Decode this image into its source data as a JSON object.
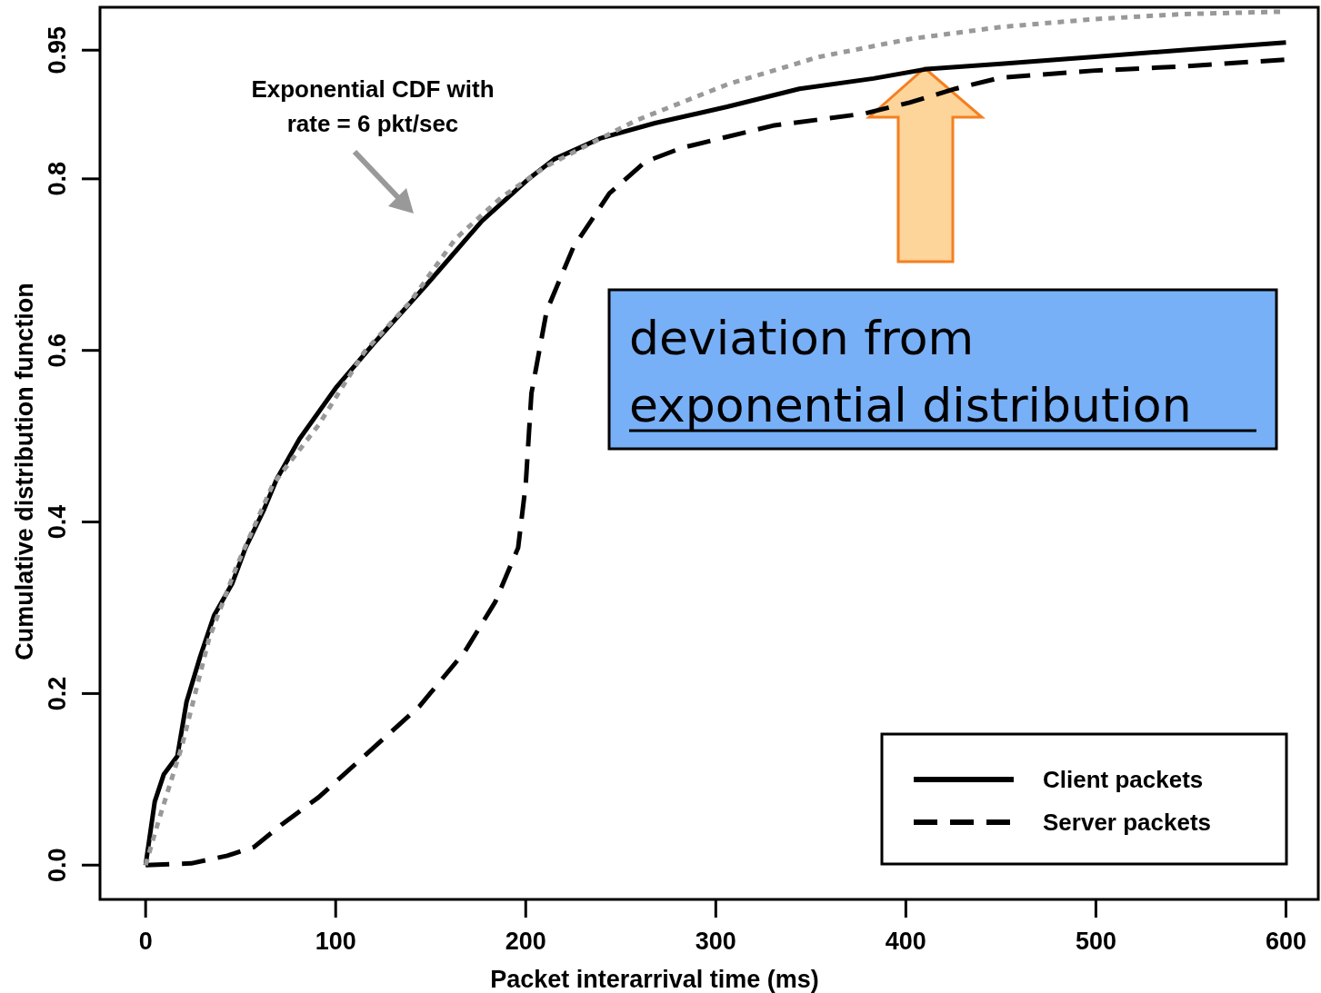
{
  "chart_data": {
    "type": "line",
    "xlabel": "Packet interarrival time (ms)",
    "ylabel": "Cumulative distribution function",
    "xlim": [
      -24,
      617
    ],
    "ylim": [
      -0.04,
      1.0
    ],
    "xticks": [
      0,
      100,
      200,
      300,
      400,
      500,
      600
    ],
    "yticks": [
      {
        "value": 0,
        "label": "0.0"
      },
      {
        "value": 0.2,
        "label": "0.2"
      },
      {
        "value": 0.4,
        "label": "0.4"
      },
      {
        "value": 0.6,
        "label": "0.6"
      },
      {
        "value": 0.8,
        "label": "0.8"
      },
      {
        "value": 0.95,
        "label": "0.95"
      }
    ],
    "grid": false,
    "legend": "bottom right",
    "series": [
      {
        "name": "Client packets",
        "color": "#000000",
        "line_style": "solid",
        "x": [
          0,
          4.8,
          9.6,
          16.7,
          21.5,
          28.7,
          36,
          45.5,
          52.6,
          62,
          69,
          81,
          100,
          120,
          148,
          177,
          201,
          215,
          239,
          268,
          306,
          344,
          383,
          411,
          450,
          498,
          545,
          600
        ],
        "values": [
          0,
          0.074,
          0.106,
          0.127,
          0.19,
          0.243,
          0.291,
          0.328,
          0.37,
          0.413,
          0.45,
          0.497,
          0.556,
          0.608,
          0.677,
          0.751,
          0.799,
          0.823,
          0.847,
          0.865,
          0.884,
          0.905,
          0.917,
          0.928,
          0.934,
          0.942,
          0.95,
          0.959
        ]
      },
      {
        "name": "Server packets",
        "color": "#000000",
        "line_style": "dashed",
        "x": [
          0,
          24,
          43,
          57,
          72,
          91,
          115,
          144,
          168,
          184,
          196,
          200,
          203,
          211,
          225,
          244,
          263,
          282,
          330,
          378,
          402,
          426,
          450,
          498,
          545,
          600
        ],
        "values": [
          0,
          0.002,
          0.011,
          0.021,
          0.048,
          0.079,
          0.127,
          0.185,
          0.249,
          0.307,
          0.37,
          0.444,
          0.55,
          0.646,
          0.72,
          0.783,
          0.82,
          0.836,
          0.862,
          0.876,
          0.889,
          0.905,
          0.918,
          0.926,
          0.931,
          0.939
        ]
      },
      {
        "color": "#999999",
        "line_style": "dotted",
        "x": [
          0,
          7,
          19,
          33.5,
          48,
          67,
          91,
          115,
          139,
          163,
          187,
          211,
          234,
          258,
          306,
          354,
          402,
          450,
          498,
          545,
          600
        ],
        "values": [
          0,
          0.053,
          0.138,
          0.265,
          0.349,
          0.444,
          0.513,
          0.598,
          0.656,
          0.73,
          0.778,
          0.815,
          0.841,
          0.868,
          0.91,
          0.942,
          0.963,
          0.977,
          0.986,
          0.992,
          0.995
        ]
      }
    ],
    "annotations": [
      "Exponential CDF with rate = 6 pkt/sec",
      "deviation from exponential distribution"
    ]
  }
}
